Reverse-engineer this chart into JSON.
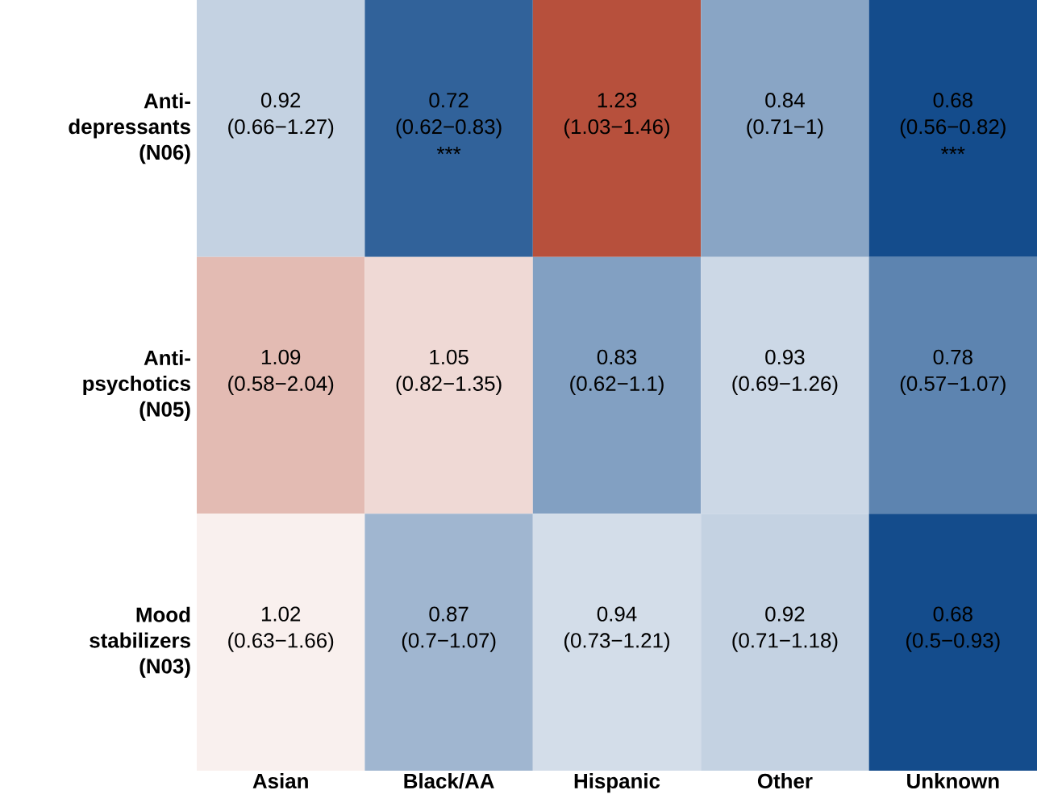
{
  "chart_data": {
    "type": "heatmap",
    "data_labels": true,
    "categories": [
      "Asian",
      "Black/AA",
      "Hispanic",
      "Other",
      "Unknown"
    ],
    "y_categories": [
      "Anti-depressants (N06)",
      "Anti-psychotics (N05)",
      "Mood stabilizers (N03)"
    ],
    "cells": [
      [
        0.92,
        0.72,
        1.23,
        0.84,
        0.68
      ],
      [
        1.09,
        1.05,
        0.83,
        0.93,
        0.78
      ],
      [
        1.02,
        0.87,
        0.94,
        0.92,
        0.68
      ]
    ],
    "annotations": [
      "(0.66−1.27)",
      "(0.62−0.83) ***",
      "(1.03−1.46)",
      "(0.71−1)",
      "(0.56−0.82) ***",
      "(0.58−2.04)",
      "(0.82−1.35)",
      "(0.62−1.1)",
      "(0.69−1.26)",
      "(0.57−1.07)",
      "(0.63−1.66)",
      "(0.7−1.07)",
      "(0.73−1.21)",
      "(0.71−1.18)",
      "(0.5−0.93)"
    ]
  }
}
